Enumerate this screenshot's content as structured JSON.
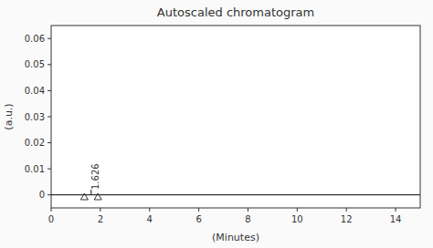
{
  "chart_data": {
    "type": "line",
    "title": "Autoscaled chromatogram",
    "xlabel": "(Minutes)",
    "ylabel": "(a.u.)",
    "xlim": [
      0,
      15
    ],
    "ylim": [
      -0.005,
      0.065
    ],
    "xticks": [
      0,
      2,
      4,
      6,
      8,
      10,
      12,
      14
    ],
    "yticks": [
      0,
      0.01,
      0.02,
      0.03,
      0.04,
      0.05,
      0.06
    ],
    "color": "#333333",
    "series": [
      {
        "type": "line",
        "x": [
          0,
          15
        ],
        "values": [
          0.0,
          0.0
        ]
      },
      {
        "type": "line",
        "x": [
          1.626,
          1.626
        ],
        "values": [
          0.0,
          0.002
        ]
      },
      {
        "type": "scatter",
        "marker": "triangle",
        "x": [
          1.35,
          1.9
        ],
        "values": [
          -0.0008,
          -0.0008
        ]
      }
    ],
    "annotations": [
      {
        "text": "1.626",
        "x": 1.68,
        "y": 0.002
      }
    ]
  }
}
